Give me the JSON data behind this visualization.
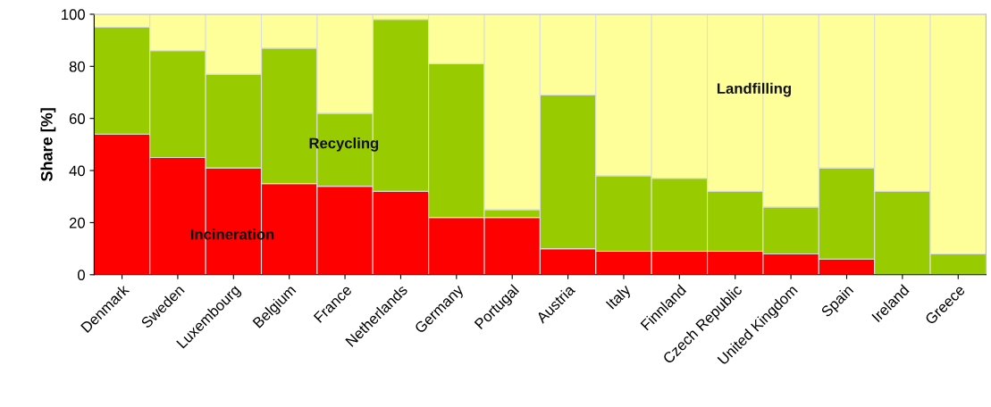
{
  "chart_data": {
    "type": "bar",
    "stacked": true,
    "ylabel": "Share [%]",
    "categories": [
      "Denmark",
      "Sweden",
      "Luxembourg",
      "Belgium",
      "France",
      "Netherlands",
      "Germany",
      "Portugal",
      "Austria",
      "Italy",
      "Finnland",
      "Czech Republic",
      "United Kingdom",
      "Spain",
      "Ireland",
      "Greece"
    ],
    "series": [
      {
        "name": "Incineration",
        "color": "#ff0000",
        "values": [
          54,
          45,
          41,
          35,
          34,
          32,
          22,
          22,
          10,
          9,
          9,
          9,
          8,
          6,
          0,
          0
        ]
      },
      {
        "name": "Recycling",
        "color": "#99cc00",
        "values": [
          41,
          41,
          36,
          52,
          28,
          66,
          59,
          3,
          59,
          29,
          28,
          23,
          18,
          35,
          32,
          8
        ]
      },
      {
        "name": "Landfilling",
        "color": "#ffff99",
        "values": [
          5,
          14,
          23,
          13,
          38,
          2,
          19,
          75,
          31,
          62,
          63,
          68,
          74,
          59,
          68,
          92
        ]
      }
    ],
    "ylim": [
      0,
      100
    ],
    "yticks": [
      0,
      20,
      40,
      60,
      80,
      100
    ],
    "grid": false,
    "legend": false
  }
}
